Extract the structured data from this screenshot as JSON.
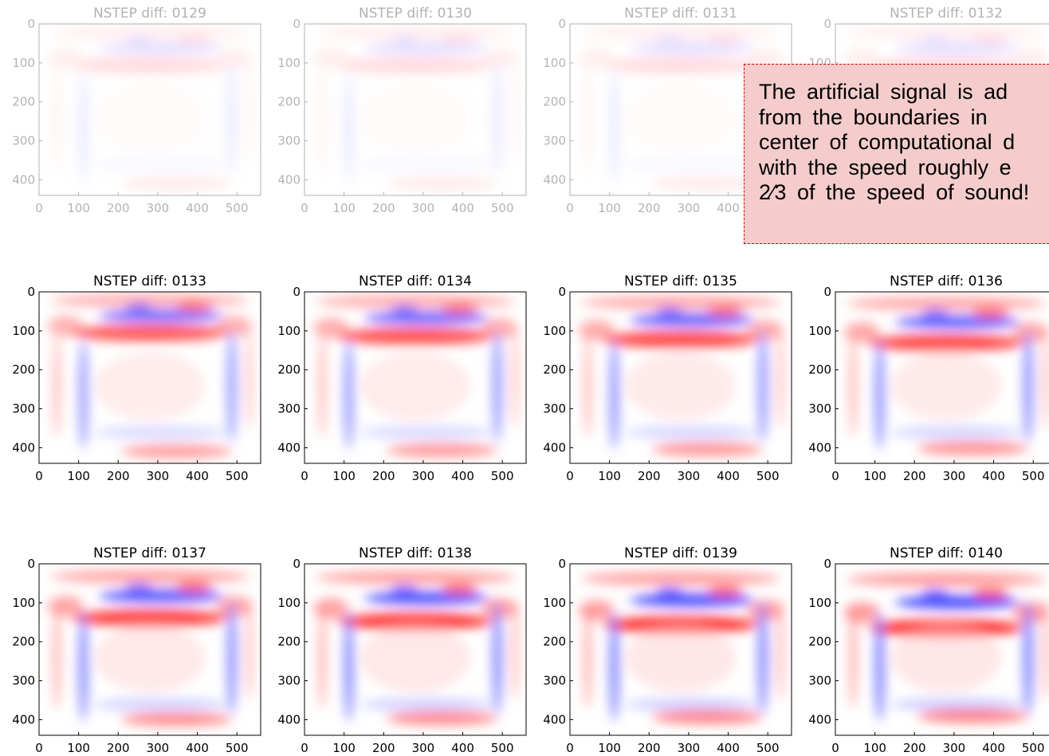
{
  "panels": [
    {
      "title": "NSTEP diff: 0129"
    },
    {
      "title": "NSTEP diff: 0130"
    },
    {
      "title": "NSTEP diff: 0131"
    },
    {
      "title": "NSTEP diff: 0132"
    },
    {
      "title": "NSTEP diff: 0133"
    },
    {
      "title": "NSTEP diff: 0134"
    },
    {
      "title": "NSTEP diff: 0135"
    },
    {
      "title": "NSTEP diff: 0136"
    },
    {
      "title": "NSTEP diff: 0137"
    },
    {
      "title": "NSTEP diff: 0138"
    },
    {
      "title": "NSTEP diff: 0139"
    },
    {
      "title": "NSTEP diff: 0140"
    }
  ],
  "xlim": [
    0,
    560
  ],
  "ylim": [
    0,
    440
  ],
  "xticks": [
    0,
    100,
    200,
    300,
    400,
    500
  ],
  "yticks": [
    0,
    100,
    200,
    300,
    400
  ],
  "callout": {
    "lines": [
      "The artificial signal is ad",
      "from the boundaries in",
      "center of computational d",
      "with the speed roughly e",
      "2⁄3 of the speed of sound!"
    ]
  }
}
